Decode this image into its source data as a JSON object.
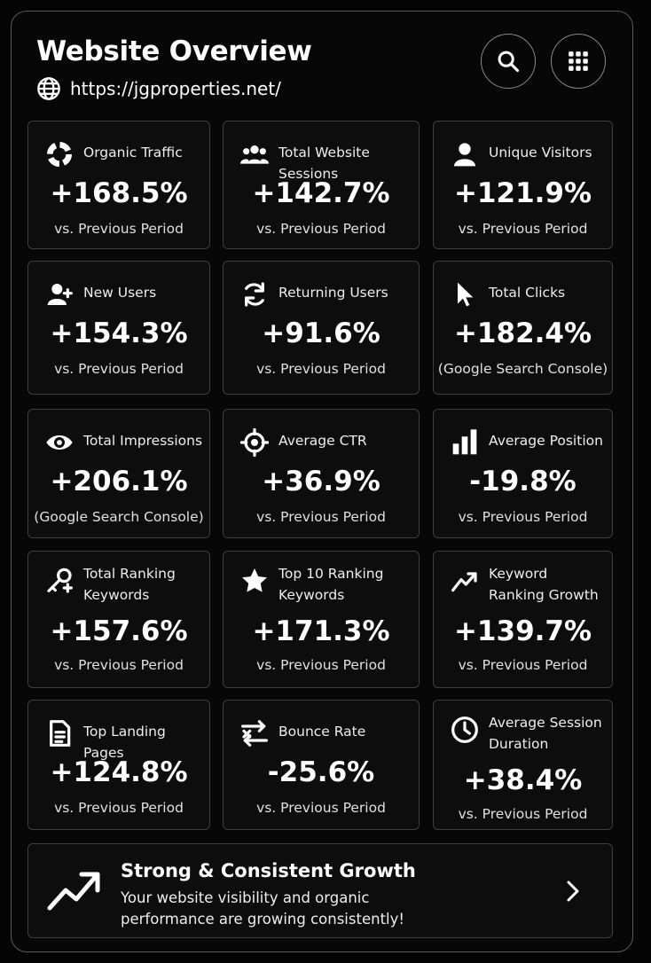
{
  "header": {
    "title": "Website Overview",
    "url": "https://jgproperties.net/"
  },
  "cards": [
    {
      "label": "Organic Traffic",
      "value": "+168.5%",
      "note": "vs. Previous Period"
    },
    {
      "label": "Total Website Sessions",
      "value": "+142.7%",
      "note": "vs. Previous Period"
    },
    {
      "label": "Unique Visitors",
      "value": "+121.9%",
      "note": "vs. Previous Period"
    },
    {
      "label": "New Users",
      "value": "+154.3%",
      "note": "vs. Previous Period"
    },
    {
      "label": "Returning Users",
      "value": "+91.6%",
      "note": "vs. Previous Period"
    },
    {
      "label": "Total Clicks",
      "value": "+182.4%",
      "note": "(Google Search Console)"
    },
    {
      "label": "Total Impressions",
      "value": "+206.1%",
      "note": "(Google Search Console)"
    },
    {
      "label": "Average CTR",
      "value": "+36.9%",
      "note": "vs. Previous Period"
    },
    {
      "label": "Average Position",
      "value": "-19.8%",
      "note": "vs. Previous Period"
    },
    {
      "label": "Total Ranking Keywords",
      "value": "+157.6%",
      "note": "vs. Previous Period"
    },
    {
      "label": "Top 10 Ranking Keywords",
      "value": "+171.3%",
      "note": "vs. Previous Period"
    },
    {
      "label": "Keyword Ranking Growth",
      "value": "+139.7%",
      "note": "vs. Previous Period"
    },
    {
      "label": "Top Landing Pages",
      "value": "+124.8%",
      "note": "vs. Previous Period"
    },
    {
      "label": "Bounce Rate",
      "value": "-25.6%",
      "note": "vs. Previous Period"
    },
    {
      "label": "Average Session Duration",
      "value": "+38.4%",
      "note": "vs. Previous Period"
    }
  ],
  "banner": {
    "title": "Strong & Consistent Growth",
    "text": "Your website visibility and organic performance are growing consistently!"
  }
}
